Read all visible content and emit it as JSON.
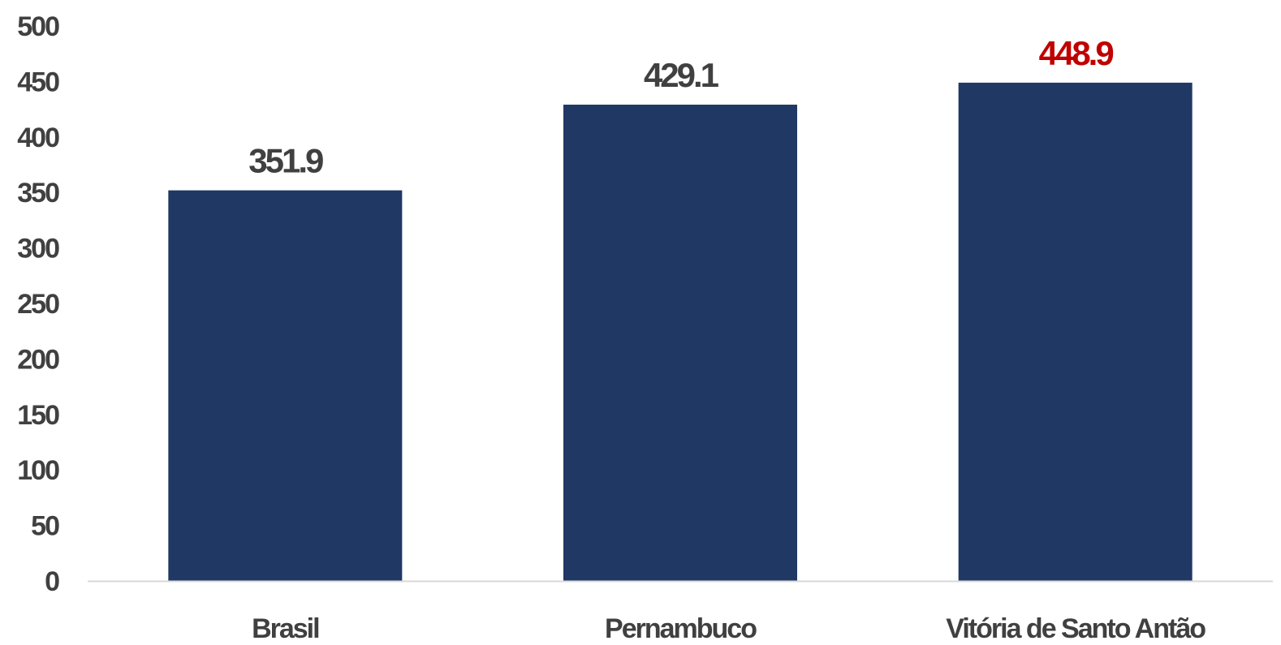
{
  "chart_data": {
    "type": "bar",
    "categories": [
      "Brasil",
      "Pernambuco",
      "Vitória de Santo Antão"
    ],
    "values": [
      351.9,
      429.1,
      448.9
    ],
    "data_labels": [
      "351.9",
      "429.1",
      "448.9"
    ],
    "title": "",
    "xlabel": "",
    "ylabel": "",
    "ylim": [
      0,
      500
    ],
    "yticks": [
      "0",
      "50",
      "100",
      "150",
      "200",
      "250",
      "300",
      "350",
      "400",
      "450",
      "500"
    ],
    "grid": false,
    "legend": "none",
    "colors": {
      "bar": "#203864",
      "axis_line": "#D9D9D9",
      "label_text": "#404040",
      "highlight_label": "#C00000"
    },
    "highlight_index": 2
  }
}
